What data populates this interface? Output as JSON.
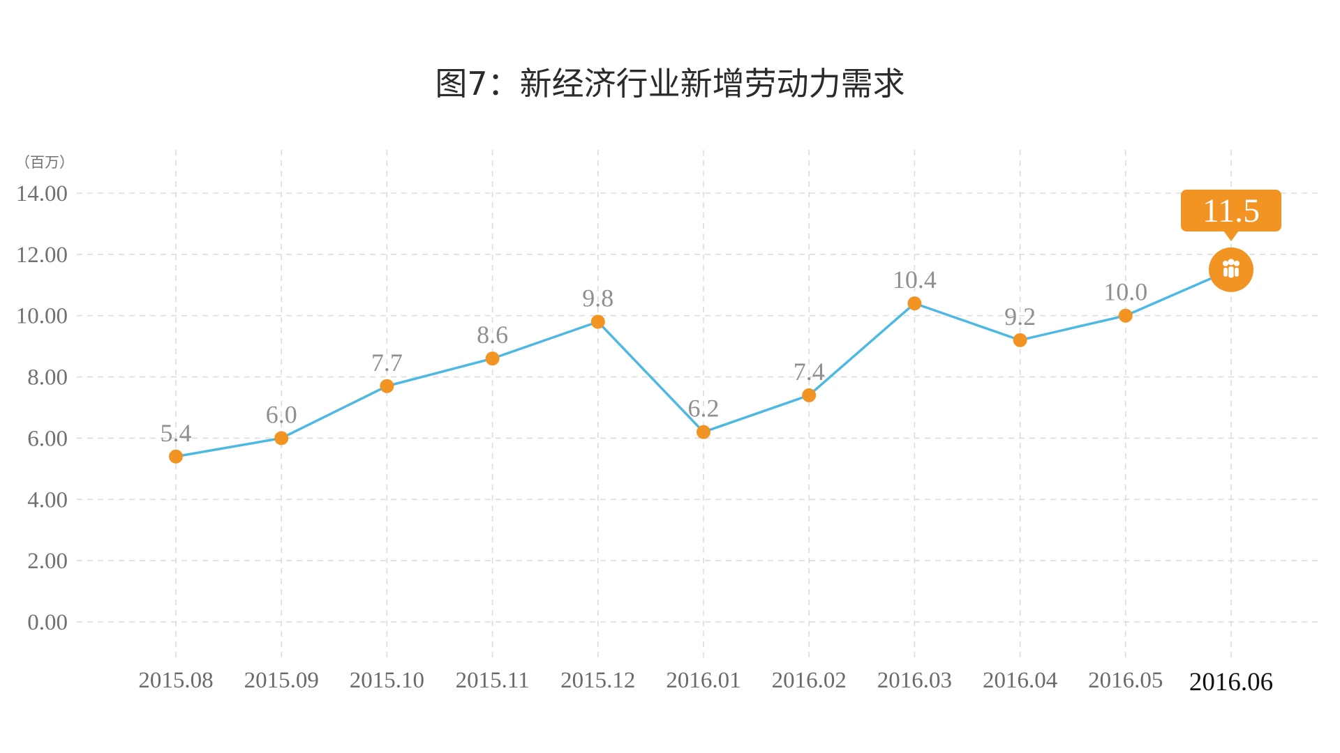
{
  "chart_data": {
    "type": "line",
    "title": "图7：新经济行业新增劳动力需求",
    "unit_label": "（百万）",
    "categories": [
      "2015.08",
      "2015.09",
      "2015.10",
      "2015.11",
      "2015.12",
      "2016.01",
      "2016.02",
      "2016.03",
      "2016.04",
      "2016.05",
      "2016.06"
    ],
    "values": [
      5.4,
      6.0,
      7.7,
      8.6,
      9.8,
      6.2,
      7.4,
      10.4,
      9.2,
      10.0,
      11.5
    ],
    "data_labels": [
      "5.4",
      "6.0",
      "7.7",
      "8.6",
      "9.8",
      "6.2",
      "7.4",
      "10.4",
      "9.2",
      "10.0",
      "11.5"
    ],
    "y_ticks": [
      "0.00",
      "2.00",
      "4.00",
      "6.00",
      "8.00",
      "10.00",
      "12.00",
      "14.00"
    ],
    "ylim": [
      0,
      14
    ],
    "grid": true,
    "highlight": {
      "category": "2016.06",
      "value": 11.5,
      "label": "11.5",
      "icon": "people-group-icon"
    },
    "colors": {
      "line": "#4db8e2",
      "marker": "#f29423",
      "callout": "#f29423"
    }
  }
}
